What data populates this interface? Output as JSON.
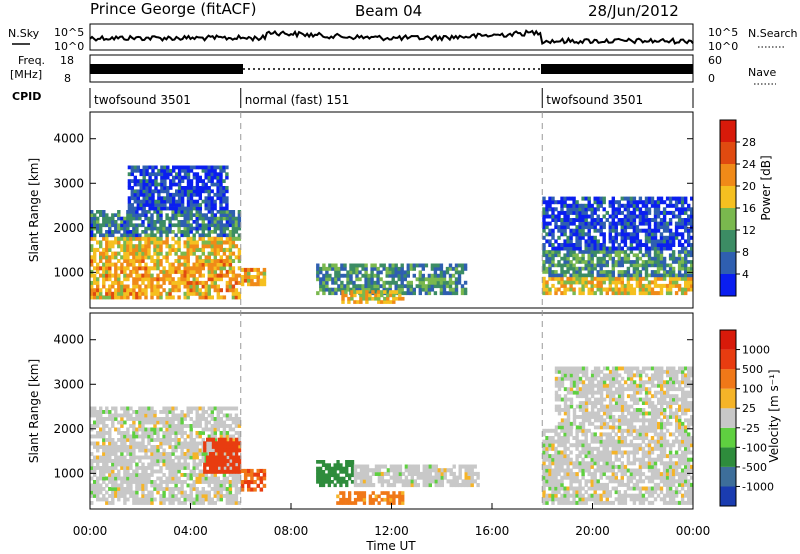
{
  "header": {
    "station": "Prince George (fitACF)",
    "beam": "Beam 04",
    "date": "28/Jun/2012"
  },
  "status_panels": {
    "nsky_label": "N.Sky",
    "nsky_top": "10^5",
    "nsky_bottom": "10^0",
    "nsearch_label": "N.Search",
    "freq_label": "Freq.",
    "freq_unit": "[MHz]",
    "freq_top": "18",
    "freq_bottom": "8",
    "nave_top": "60",
    "nave_bottom": "0",
    "nave_label": "Nave",
    "cpid_label": "CPID",
    "cpid_segments": [
      {
        "start": 0,
        "end": 6,
        "label": "twofsound 3501"
      },
      {
        "start": 6,
        "end": 18,
        "label": "normal (fast) 151"
      },
      {
        "start": 18,
        "end": 24,
        "label": "twofsound 3501"
      }
    ]
  },
  "chart_data": [
    {
      "type": "heatmap",
      "name": "power",
      "ylabel": "Slant Range [km]",
      "ylim": [
        200,
        4600
      ],
      "yticks": [
        "1000",
        "2000",
        "3000",
        "4000"
      ],
      "xlim": [
        0,
        24
      ],
      "colorbar_label": "Power [dB]",
      "colorbar_ticks": [
        "4",
        "8",
        "12",
        "16",
        "20",
        "24",
        "28"
      ],
      "colorbar_colors": [
        "#0a1ef0",
        "#2f5fb0",
        "#3c8c64",
        "#7ab84e",
        "#f5c020",
        "#f08a18",
        "#e04a10",
        "#d81a0a"
      ],
      "regions": [
        {
          "t0": 0.0,
          "t1": 6.0,
          "r0": 400,
          "r1": 1300,
          "level": 22
        },
        {
          "t0": 0.0,
          "t1": 6.0,
          "r0": 1300,
          "r1": 1800,
          "level": 20
        },
        {
          "t0": 0.0,
          "t1": 6.0,
          "r0": 1800,
          "r1": 2400,
          "level": 10
        },
        {
          "t0": 1.5,
          "t1": 5.5,
          "r0": 2400,
          "r1": 3400,
          "level": 6
        },
        {
          "t0": 6.0,
          "t1": 7.0,
          "r0": 700,
          "r1": 1100,
          "level": 22
        },
        {
          "t0": 9.0,
          "t1": 15.0,
          "r0": 500,
          "r1": 1200,
          "level": 12
        },
        {
          "t0": 10.0,
          "t1": 12.5,
          "r0": 300,
          "r1": 600,
          "level": 20
        },
        {
          "t0": 18.0,
          "t1": 24.0,
          "r0": 500,
          "r1": 900,
          "level": 20
        },
        {
          "t0": 18.0,
          "t1": 24.0,
          "r0": 900,
          "r1": 1500,
          "level": 12
        },
        {
          "t0": 18.0,
          "t1": 24.0,
          "r0": 1500,
          "r1": 2700,
          "level": 6
        }
      ]
    },
    {
      "type": "heatmap",
      "name": "velocity",
      "ylabel": "Slant Range [km]",
      "ylim": [
        200,
        4600
      ],
      "yticks": [
        "1000",
        "2000",
        "3000",
        "4000"
      ],
      "xlim": [
        0,
        24
      ],
      "xticks": [
        "00:00",
        "04:00",
        "08:00",
        "12:00",
        "16:00",
        "20:00",
        "00:00"
      ],
      "xlabel": "Time UT",
      "colorbar_label": "Velocity [m s⁻¹]",
      "colorbar_ticks": [
        "1000",
        "500",
        "100",
        "25",
        "-25",
        "-100",
        "-500",
        "-1000"
      ],
      "colorbar_colors": [
        "#1a3cb0",
        "#3d6e9a",
        "#2e8c3c",
        "#5fd040",
        "#c8c8c8",
        "#f5b428",
        "#f07818",
        "#e83c10",
        "#d81a0a"
      ],
      "regions": [
        {
          "t0": 0.0,
          "t1": 6.0,
          "r0": 300,
          "r1": 2500,
          "level": 0
        },
        {
          "t0": 4.5,
          "t1": 6.0,
          "r0": 1000,
          "r1": 1800,
          "level": -400
        },
        {
          "t0": 6.0,
          "t1": 7.0,
          "r0": 600,
          "r1": 1100,
          "level": -300
        },
        {
          "t0": 9.0,
          "t1": 10.5,
          "r0": 700,
          "r1": 1300,
          "level": 90
        },
        {
          "t0": 10.5,
          "t1": 15.5,
          "r0": 700,
          "r1": 1200,
          "level": 0
        },
        {
          "t0": 9.8,
          "t1": 12.5,
          "r0": 300,
          "r1": 600,
          "level": -80
        },
        {
          "t0": 18.0,
          "t1": 24.0,
          "r0": 300,
          "r1": 2000,
          "level": 0
        },
        {
          "t0": 18.5,
          "t1": 24.0,
          "r0": 2000,
          "r1": 3400,
          "level": 0
        }
      ]
    }
  ]
}
